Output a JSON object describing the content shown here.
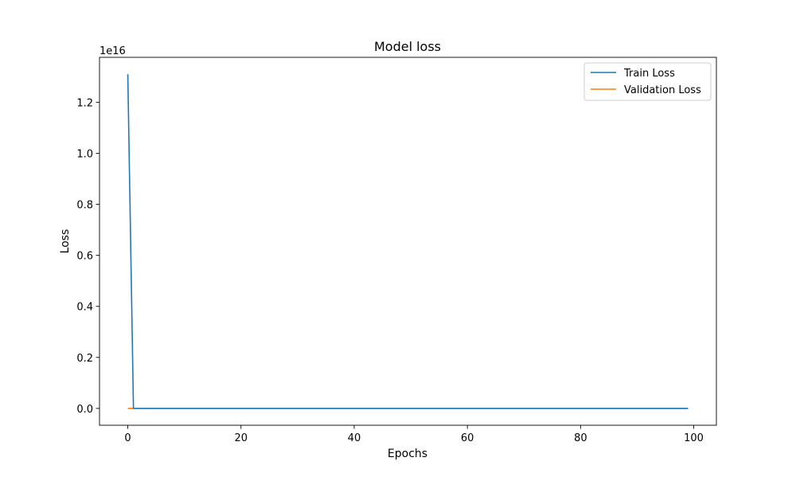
{
  "chart_data": {
    "type": "line",
    "title": "Model loss",
    "xlabel": "Epochs",
    "ylabel": "Loss",
    "y_scale_label": "1e16",
    "y_multiplier": 1e+16,
    "xlim": [
      -5,
      104
    ],
    "ylim": [
      -660000000000000.0,
      1.376e+16
    ],
    "x_ticks": [
      0,
      20,
      40,
      60,
      80,
      100
    ],
    "y_ticks": [
      0.0,
      2000000000000000.0,
      4000000000000000.0,
      6000000000000000.0,
      8000000000000000.0,
      1e+16,
      1.2e+16
    ],
    "grid": false,
    "legend_position": "top-right",
    "epochs_start": 0,
    "epochs_end": 99,
    "series": [
      {
        "name": "Train Loss",
        "color": "#1f77b4",
        "points": [
          [
            0,
            1.31e+16
          ],
          [
            1,
            0.0
          ],
          [
            99,
            0.0
          ]
        ]
      },
      {
        "name": "Validation Loss",
        "color": "#ff7f0e",
        "points": [
          [
            0,
            0.0
          ],
          [
            99,
            0.0
          ]
        ]
      }
    ]
  }
}
